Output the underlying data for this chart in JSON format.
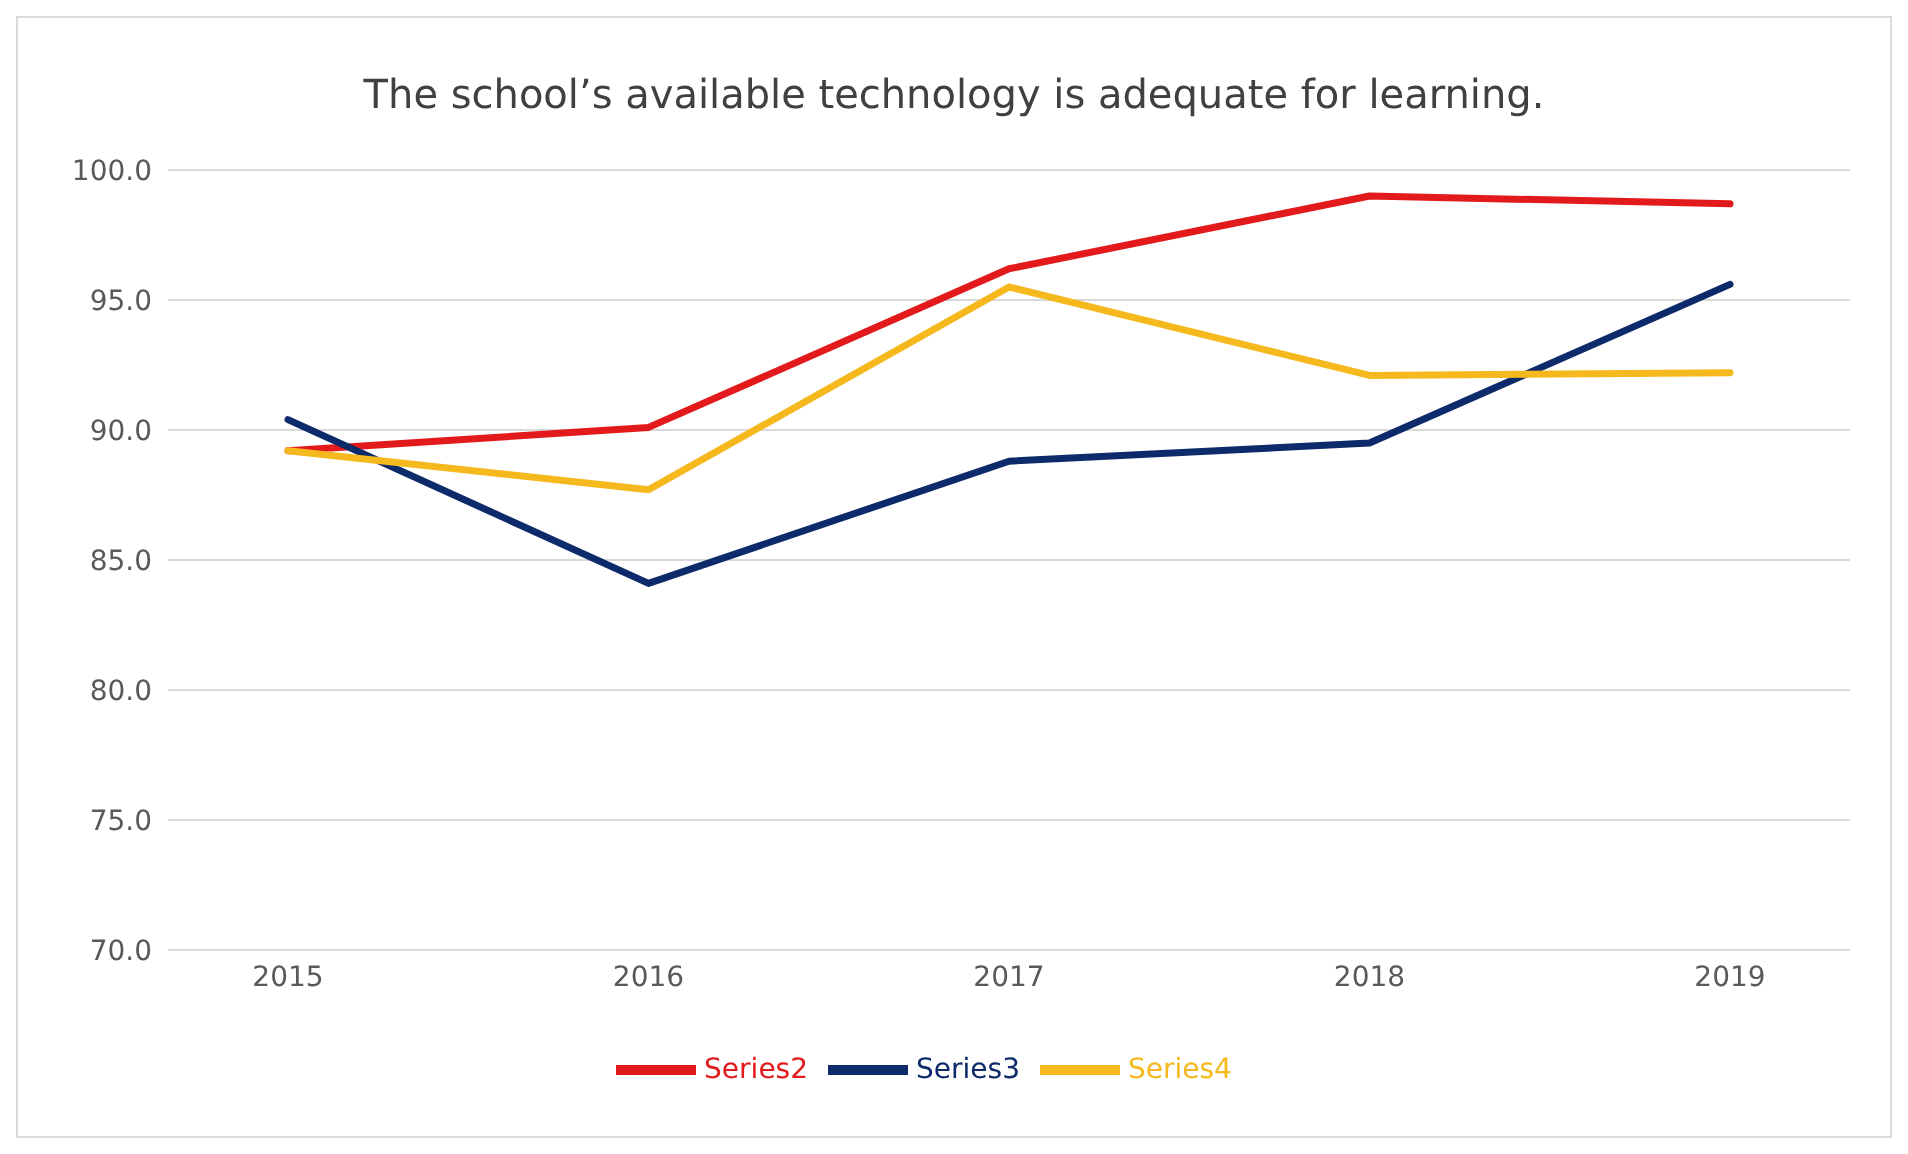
{
  "chart_data": {
    "type": "line",
    "title": "The school’s available technology is adequate for learning.",
    "categories": [
      "2015",
      "2016",
      "2017",
      "2018",
      "2019"
    ],
    "series": [
      {
        "name": "Series2",
        "color": "#e31a1c",
        "values": [
          89.2,
          90.1,
          96.2,
          99.0,
          98.7
        ]
      },
      {
        "name": "Series3",
        "color": "#0d2a6b",
        "values": [
          90.4,
          84.1,
          88.8,
          89.5,
          95.6
        ]
      },
      {
        "name": "Series4",
        "color": "#f5b91e",
        "values": [
          89.2,
          87.7,
          95.5,
          92.1,
          92.2
        ]
      }
    ],
    "ylim": [
      70,
      100
    ],
    "yticks": [
      {
        "value": 70,
        "label": "70.0"
      },
      {
        "value": 75,
        "label": "75.0"
      },
      {
        "value": 80,
        "label": "80.0"
      },
      {
        "value": 85,
        "label": "85.0"
      },
      {
        "value": 90,
        "label": "90.0"
      },
      {
        "value": 95,
        "label": "95.0"
      },
      {
        "value": 100,
        "label": "100.0"
      }
    ],
    "grid": "y",
    "legend": "bottom",
    "marker": "none",
    "line_style": "solid"
  }
}
